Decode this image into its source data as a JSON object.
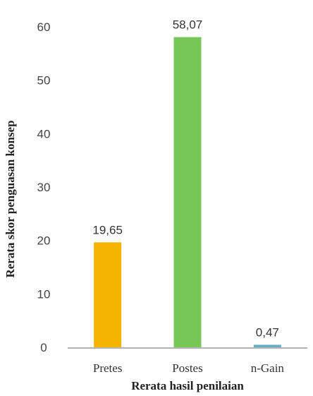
{
  "chart_data": {
    "type": "bar",
    "categories": [
      "Pretes",
      "Postes",
      "n-Gain"
    ],
    "values": [
      19.65,
      58.07,
      0.47
    ],
    "data_labels": [
      "19,65",
      "58,07",
      "0,47"
    ],
    "colors": [
      "#F4B400",
      "#76C757",
      "#66AEC8"
    ],
    "xlabel": "Rerata hasil penilaian",
    "ylabel": "Rerata skor penguasan konsep",
    "ylim": [
      0,
      60
    ],
    "yticks": [
      0,
      10,
      20,
      30,
      40,
      50,
      60
    ],
    "grid": false
  }
}
